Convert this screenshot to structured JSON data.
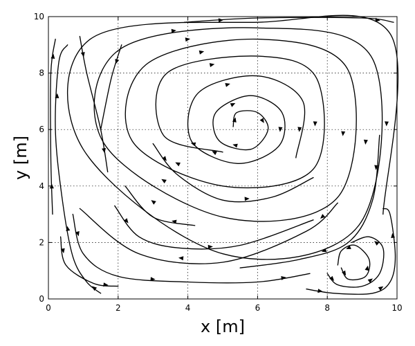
{
  "chart_data": {
    "type": "streamplot",
    "xlabel": "x [m]",
    "ylabel": "y [m]",
    "xlim": [
      0,
      10
    ],
    "ylim": [
      0,
      10
    ],
    "xticks": [
      "0",
      "2",
      "4",
      "6",
      "8",
      "10"
    ],
    "yticks": [
      "0",
      "2",
      "4",
      "6",
      "8",
      "10"
    ],
    "grid": true,
    "line_color": "#000000",
    "primary_vortex": {
      "center": [
        5.4,
        6.0
      ],
      "rotation": "clockwise",
      "streamlines": [
        [
          [
            5.0,
            5.2
          ],
          [
            3.3,
            5.8
          ],
          [
            3.4,
            8.0
          ],
          [
            6.0,
            8.6
          ],
          [
            7.7,
            7.8
          ],
          [
            7.6,
            4.6
          ],
          [
            5.0,
            4.0
          ],
          [
            2.4,
            5.6
          ],
          [
            2.8,
            8.3
          ],
          [
            6.0,
            9.2
          ],
          [
            8.6,
            8.1
          ],
          [
            8.3,
            3.6
          ],
          [
            5.0,
            2.9
          ],
          [
            1.6,
            5.5
          ],
          [
            2.0,
            8.8
          ],
          [
            6.0,
            9.6
          ],
          [
            9.3,
            8.5
          ],
          [
            8.9,
            2.6
          ],
          [
            5.0,
            1.6
          ],
          [
            1.0,
            5.3
          ],
          [
            1.2,
            9.2
          ],
          [
            6.0,
            9.8
          ],
          [
            9.8,
            9.4
          ],
          [
            9.6,
            3.0
          ]
        ],
        [
          [
            5.3,
            6.1
          ],
          [
            5.4,
            6.6
          ],
          [
            6.0,
            6.6
          ],
          [
            6.3,
            6.0
          ],
          [
            5.8,
            5.3
          ],
          [
            4.9,
            5.6
          ],
          [
            4.8,
            6.6
          ],
          [
            5.8,
            7.2
          ],
          [
            6.7,
            6.6
          ],
          [
            6.6,
            5.4
          ],
          [
            5.4,
            4.8
          ],
          [
            4.1,
            5.6
          ],
          [
            4.3,
            7.3
          ],
          [
            6.0,
            7.9
          ],
          [
            7.3,
            7.0
          ],
          [
            7.1,
            5.0
          ]
        ],
        [
          [
            3.0,
            5.5
          ],
          [
            3.7,
            4.4
          ],
          [
            5.0,
            3.5
          ],
          [
            6.4,
            3.6
          ],
          [
            7.6,
            4.3
          ]
        ],
        [
          [
            8.3,
            3.4
          ],
          [
            7.4,
            2.4
          ],
          [
            5.0,
            1.3
          ],
          [
            2.6,
            1.6
          ],
          [
            0.9,
            3.2
          ]
        ],
        [
          [
            0.7,
            3.0
          ],
          [
            1.0,
            1.6
          ],
          [
            2.0,
            0.8
          ],
          [
            4.0,
            0.6
          ],
          [
            6.0,
            0.6
          ],
          [
            7.5,
            0.9
          ]
        ],
        [
          [
            9.5,
            5.8
          ],
          [
            9.3,
            3.5
          ],
          [
            8.6,
            2.0
          ],
          [
            7.2,
            1.4
          ],
          [
            5.5,
            1.1
          ]
        ],
        [
          [
            0.35,
            2.2
          ],
          [
            0.5,
            1.2
          ],
          [
            1.3,
            0.55
          ],
          [
            2.0,
            0.45
          ]
        ],
        [
          [
            1.5,
            0.2
          ],
          [
            1.1,
            0.6
          ],
          [
            0.7,
            1.5
          ],
          [
            0.4,
            3.5
          ],
          [
            0.2,
            6.0
          ],
          [
            0.3,
            8.4
          ],
          [
            0.55,
            9.0
          ]
        ],
        [
          [
            0.9,
            9.3
          ],
          [
            1.1,
            8.0
          ],
          [
            1.5,
            6.0
          ],
          [
            1.7,
            4.5
          ]
        ],
        [
          [
            2.1,
            9.0
          ],
          [
            1.8,
            7.8
          ],
          [
            1.5,
            6.0
          ]
        ],
        [
          [
            3.9,
            9.8
          ],
          [
            6.0,
            9.95
          ],
          [
            9.0,
            9.95
          ],
          [
            9.9,
            9.8
          ]
        ],
        [
          [
            0.12,
            3.0
          ],
          [
            0.07,
            5.0
          ],
          [
            0.07,
            8.0
          ],
          [
            0.2,
            9.2
          ]
        ],
        [
          [
            1.9,
            3.3
          ],
          [
            2.6,
            2.2
          ],
          [
            3.8,
            1.8
          ],
          [
            5.5,
            1.9
          ],
          [
            7.6,
            2.8
          ]
        ],
        [
          [
            4.2,
            2.6
          ],
          [
            3.0,
            2.9
          ],
          [
            2.2,
            4.0
          ]
        ]
      ]
    },
    "secondary_vortex": {
      "center": [
        8.8,
        1.0
      ],
      "rotation": "counterclockwise",
      "streamlines": [
        [
          [
            8.4,
            1.1
          ],
          [
            8.6,
            0.7
          ],
          [
            9.1,
            0.8
          ],
          [
            9.2,
            1.4
          ],
          [
            8.8,
            1.9
          ],
          [
            8.4,
            1.7
          ],
          [
            8.3,
            1.2
          ]
        ],
        [
          [
            8.0,
            0.9
          ],
          [
            8.3,
            0.5
          ],
          [
            9.0,
            0.45
          ],
          [
            9.5,
            0.9
          ],
          [
            9.6,
            1.8
          ],
          [
            9.2,
            2.2
          ],
          [
            8.7,
            2.0
          ]
        ],
        [
          [
            7.4,
            0.35
          ],
          [
            8.2,
            0.2
          ],
          [
            9.3,
            0.2
          ],
          [
            9.8,
            0.6
          ],
          [
            9.95,
            1.5
          ],
          [
            9.8,
            3.0
          ],
          [
            9.6,
            3.2
          ]
        ]
      ]
    }
  }
}
